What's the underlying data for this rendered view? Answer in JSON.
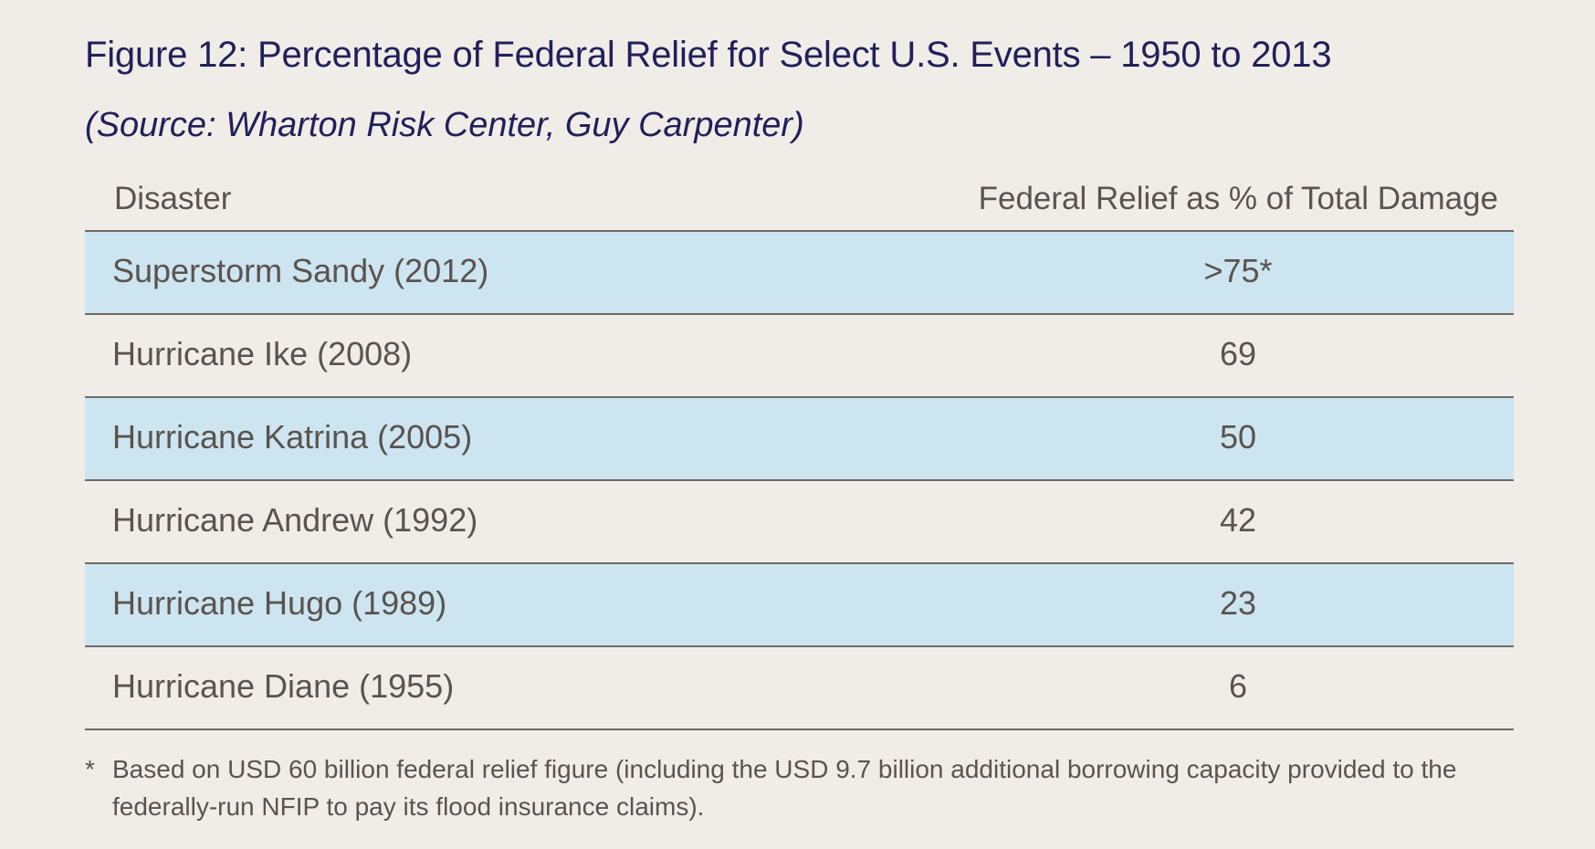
{
  "title": "Figure 12: Percentage of Federal Relief for Select U.S. Events – 1950 to 2013",
  "subtitle": "(Source: Wharton Risk Center, Guy Carpenter)",
  "footnote": {
    "mark": "*",
    "text": "Based on USD 60 billion federal relief figure (including the USD 9.7 billion additional borrowing capacity provided to the federally-run NFIP to pay its flood insurance claims)."
  },
  "colors": {
    "title": "#22205a",
    "text": "#5a534e",
    "shaded_row": "#cde5f1",
    "background": "#f0ede8",
    "rule": "#6f6a66"
  },
  "chart_data": {
    "type": "table",
    "columns": [
      "Disaster",
      "Federal Relief as % of Total Damage"
    ],
    "rows": [
      {
        "disaster": "Superstorm Sandy (2012)",
        "value": ">75*",
        "shaded": true
      },
      {
        "disaster": "Hurricane Ike (2008)",
        "value": "69",
        "shaded": false
      },
      {
        "disaster": "Hurricane Katrina (2005)",
        "value": "50",
        "shaded": true
      },
      {
        "disaster": "Hurricane Andrew (1992)",
        "value": "42",
        "shaded": false
      },
      {
        "disaster": "Hurricane Hugo (1989)",
        "value": "23",
        "shaded": true
      },
      {
        "disaster": "Hurricane Diane (1955)",
        "value": "6",
        "shaded": false
      }
    ]
  }
}
